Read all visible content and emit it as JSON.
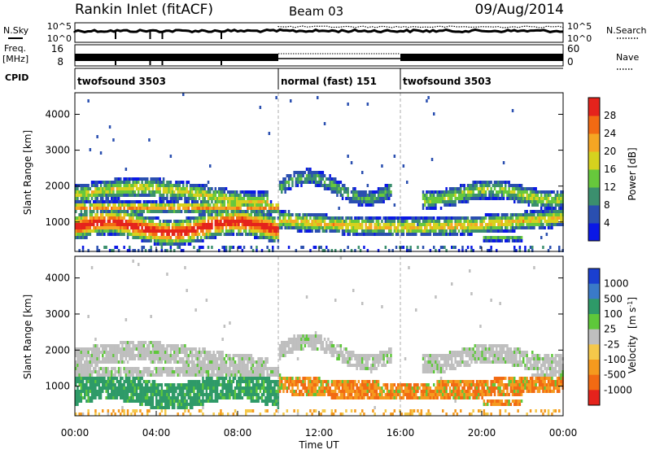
{
  "header": {
    "title": "Rankin Inlet (fitACF)",
    "beam": "Beam 03",
    "date": "09/Aug/2014"
  },
  "chart_data": [
    {
      "type": "line",
      "name": "nsky-nsearch-strip",
      "left_label": "N.Sky",
      "right_label": "N.Search",
      "left_ticks": [
        "10^5",
        "10^0"
      ],
      "right_ticks": [
        "10^5",
        "10^0"
      ]
    },
    {
      "type": "line",
      "name": "freq-nave-strip",
      "left_label": "Freq.",
      "left_unit": "[MHz]",
      "right_label": "Nave",
      "left_ticks": [
        "16",
        "8"
      ],
      "right_ticks": [
        "60",
        "0"
      ]
    },
    {
      "type": "table",
      "name": "cpid-strip",
      "label": "CPID",
      "segments": [
        {
          "start_h": 0,
          "end_h": 10,
          "label": "twofsound 3503"
        },
        {
          "start_h": 10,
          "end_h": 16,
          "label": "normal (fast) 151"
        },
        {
          "start_h": 16,
          "end_h": 24,
          "label": "twofsound 3503"
        }
      ]
    },
    {
      "type": "heatmap",
      "name": "power-panel",
      "ylabel": "Slant Range [km]",
      "yticks": [
        1000,
        2000,
        3000,
        4000
      ],
      "ylim": [
        180,
        4600
      ],
      "xlim": [
        0,
        24
      ],
      "colorbar": {
        "label": "Power [dB]",
        "ticks": [
          "4",
          "8",
          "12",
          "16",
          "20",
          "24",
          "28"
        ],
        "colors": [
          "#0a18e6",
          "#2a4fb0",
          "#3b8f6e",
          "#67c83c",
          "#d6d21e",
          "#f5a623",
          "#f26a13",
          "#e5231c"
        ]
      }
    },
    {
      "type": "heatmap",
      "name": "velocity-panel",
      "ylabel": "Slant Range [km]",
      "yticks": [
        1000,
        2000,
        3000,
        4000
      ],
      "ylim": [
        180,
        4600
      ],
      "xlim": [
        0,
        24
      ],
      "colorbar": {
        "label_main": "Velocity",
        "label_unit": "[m s",
        "label_exp": "-1",
        "label_close": "]",
        "ticks": [
          "1000",
          "500",
          "100",
          "25",
          "-25",
          "-100",
          "-500",
          "-1000"
        ],
        "colors": [
          "#1a3fd0",
          "#3a7ac8",
          "#2e9a68",
          "#5ec83a",
          "#bfbfbf",
          "#f5c84a",
          "#f59a1e",
          "#f26a13",
          "#e5231c"
        ]
      }
    }
  ],
  "x_axis": {
    "label": "Time UT",
    "ticks": [
      "00:00",
      "04:00",
      "08:00",
      "12:00",
      "16:00",
      "20:00",
      "00:00"
    ]
  }
}
